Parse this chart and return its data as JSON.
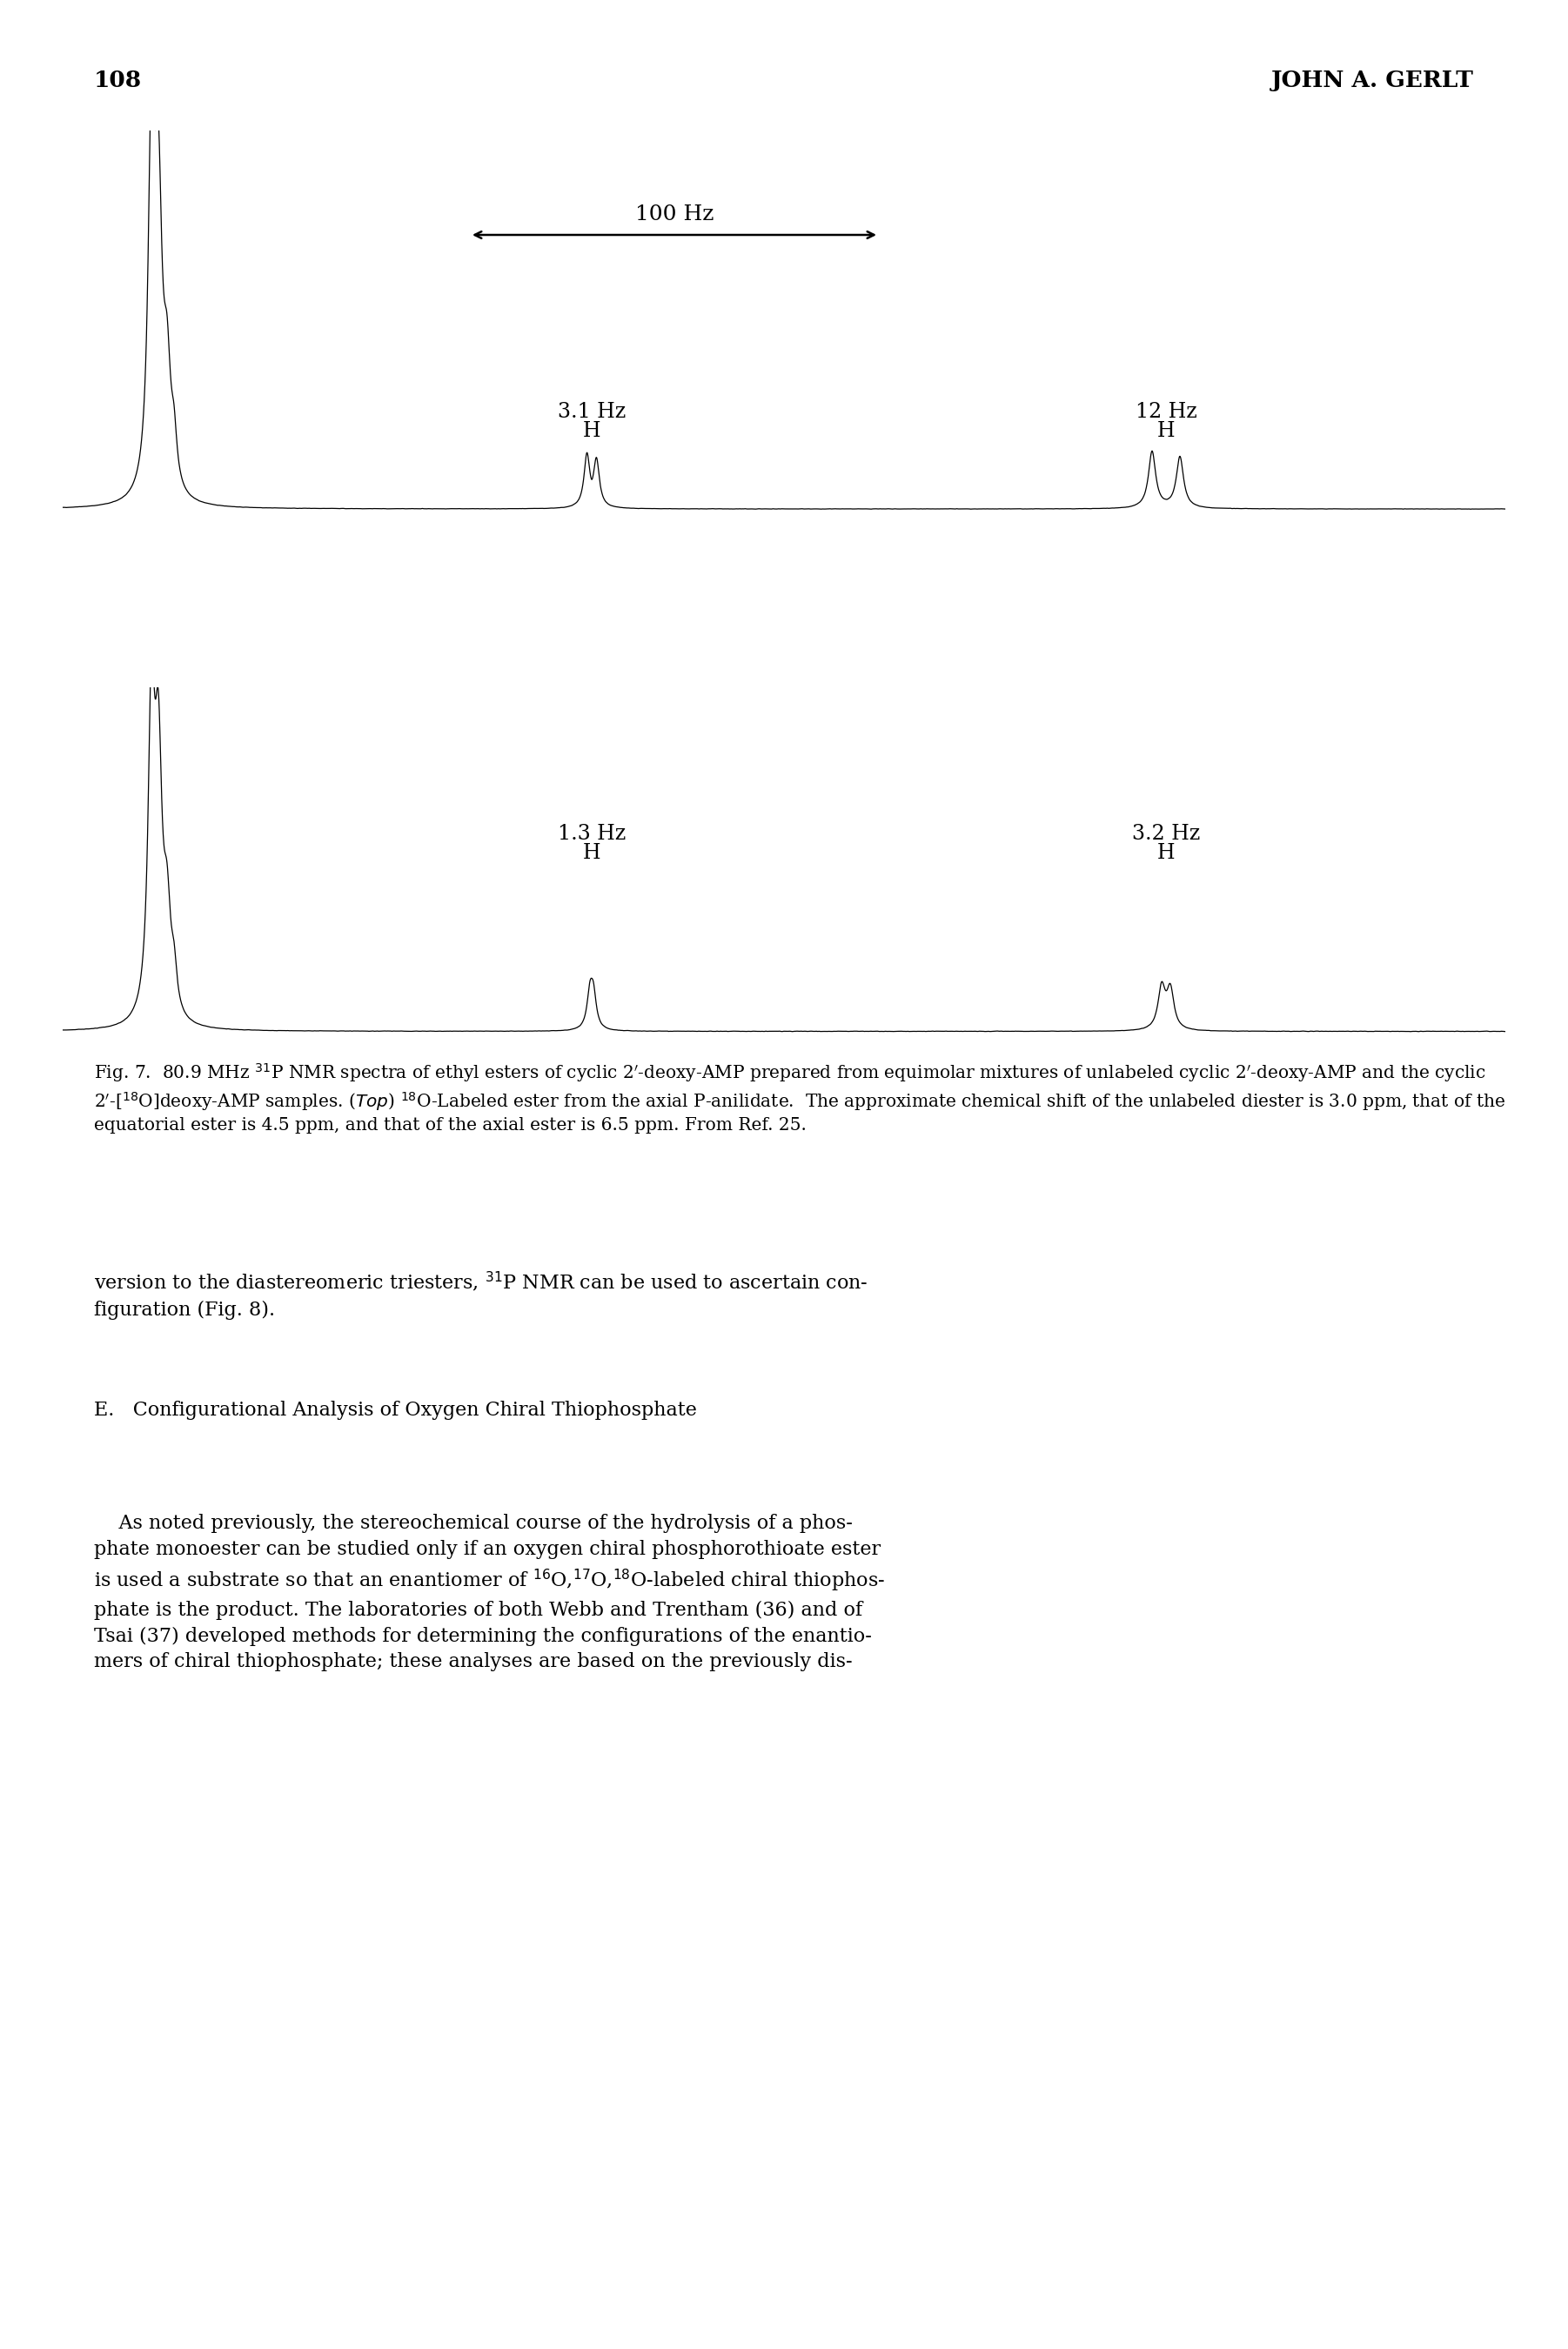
{
  "page_number": "108",
  "header_right": "JOHN A. GERLT",
  "scale_bar_label": "100 Hz",
  "top_peak1_label": "3.1 Hz",
  "top_peak1_H": "H",
  "top_peak2_label": "12 Hz",
  "top_peak2_H": "H",
  "bot_peak1_label": "1.3 Hz",
  "bot_peak1_H": "H",
  "bot_peak2_label": "3.2 Hz",
  "bot_peak2_H": "H",
  "caption_line1": "Fig. 7.  80.9 MHz ",
  "caption_sup1": "31",
  "caption_line1b": "P NMR spectra of ethyl esters of cyclic 2′-deoxy-AMP prepared from",
  "caption_line2": "equimolar mixtures of unlabeled cyclic 2′-deoxy-AMP and the cyclic 2′-[",
  "caption_sup2": "18",
  "caption_line2b": "O]deoxy-AMP samples.",
  "caption_line3a": "(Top) ",
  "caption_sup3": "18",
  "caption_line3b": "O-Labeled ester from the axial P-anilidate.  The approximate chemical shift of the unlabeled",
  "caption_line4": "diester is 3.0 ppm, that of the equatorial ester is 4.5 ppm, and that of the axial ester is 6.5 ppm.",
  "caption_line5": "From Ref. 25.",
  "body1_line1": "version to the diastereomeric triesters, ",
  "body1_sup": "31",
  "body1_line1b": "P NMR can be used to ascertain con-",
  "body1_line2": "figuration (Fig. 8).",
  "sec_E": "E.",
  "sec_title": "  Configurational Analysis of Oxygen Chiral Thiophosphate",
  "body2_indent": "    As noted previously, the stereochemical course of the hydrolysis of a phos-",
  "body2_line2": "phate monoester can be studied only if an oxygen chiral phosphorothioate ester",
  "body2_line3a": "is used a substrate so that an enantiomer of ",
  "body2_sup3a": "16",
  "body2_line3b": "O,",
  "body2_sup3b": "17",
  "body2_line3c": "O,",
  "body2_sup3c": "18",
  "body2_line3d": "O-labeled chiral thiophos-",
  "body2_line4": "phate is the product. The laboratories of both Webb and Trentham (36) and of",
  "body2_line5": "Tsai (37) developed methods for determining the configurations of the enantio-",
  "body2_line6": "mers of chiral thiophosphate; these analyses are based on the previously dis-",
  "background_color": "#ffffff",
  "text_color": "#000000"
}
